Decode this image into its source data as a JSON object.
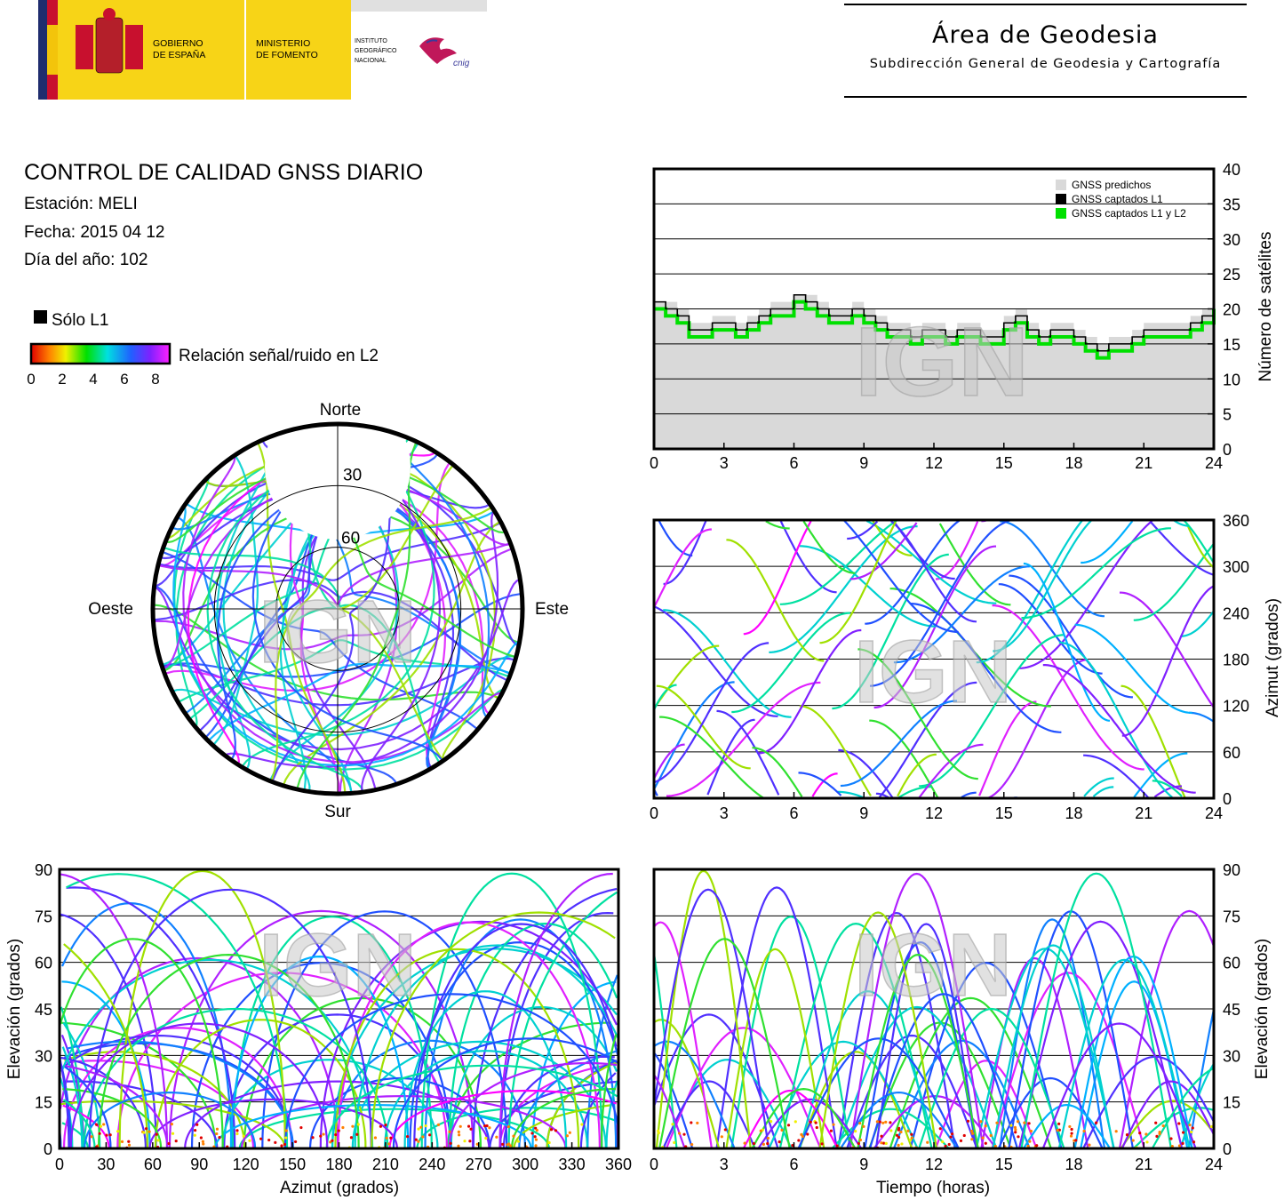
{
  "header": {
    "gov_label_1": "GOBIERNO",
    "gov_label_2": "DE ESPAÑA",
    "ministry_label_1": "MINISTERIO",
    "ministry_label_2": "DE FOMENTO",
    "ign_label_1": "INSTITUTO",
    "ign_label_2": "GEOGRÁFICO",
    "ign_label_3": "NACIONAL",
    "cnig_label": "cnig",
    "area_title": "Área de Geodesia",
    "area_subtitle": "Subdirección General de Geodesia y Cartografía"
  },
  "report": {
    "title": "CONTROL DE CALIDAD GNSS DIARIO",
    "station": "Estación: MELI",
    "date": "Fecha: 2015 04 12",
    "doy": "Día del año: 102"
  },
  "legend": {
    "only_l1": "Sólo L1",
    "snr_label": "Relación señal/ruido en L2",
    "snr_ticks": [
      "0",
      "2",
      "4",
      "6",
      "8"
    ]
  },
  "watermark": "IGN",
  "colors": {
    "predicted": "#d9d9d9",
    "l1": "#000000",
    "l1l2": "#00e000"
  },
  "chart_data": [
    {
      "id": "satellites",
      "type": "area",
      "xlim": [
        0,
        24
      ],
      "ylim": [
        0,
        40
      ],
      "xticks": [
        "0",
        "3",
        "6",
        "9",
        "12",
        "15",
        "18",
        "21",
        "24"
      ],
      "yticks": [
        "0",
        "5",
        "10",
        "15",
        "20",
        "25",
        "30",
        "35",
        "40"
      ],
      "ylabel": "Número de satélites",
      "legend_position": "top-right",
      "series": [
        {
          "name": "GNSS predichos"
        },
        {
          "name": "GNSS captados L1"
        },
        {
          "name": "GNSS captados L1 y L2"
        }
      ],
      "x": [
        0,
        0.5,
        1,
        1.5,
        2,
        2.5,
        3,
        3.5,
        4,
        4.5,
        5,
        5.5,
        6,
        6.5,
        7,
        7.5,
        8,
        8.5,
        9,
        9.5,
        10,
        10.5,
        11,
        11.5,
        12,
        12.5,
        13,
        13.5,
        14,
        14.5,
        15,
        15.5,
        16,
        16.5,
        17,
        17.5,
        18,
        18.5,
        19,
        19.5,
        20,
        20.5,
        21,
        21.5,
        22,
        22.5,
        23,
        23.5,
        24
      ],
      "predicted": [
        21,
        21,
        20,
        18,
        18,
        19,
        19,
        18,
        19,
        20,
        21,
        21,
        22,
        22,
        21,
        20,
        20,
        21,
        20,
        19,
        18,
        18,
        17,
        18,
        18,
        17,
        18,
        18,
        17,
        17,
        19,
        20,
        18,
        17,
        18,
        18,
        17,
        16,
        15,
        16,
        16,
        17,
        18,
        18,
        18,
        18,
        19,
        20,
        21
      ],
      "l1": [
        21,
        20,
        19,
        17,
        17,
        18,
        18,
        17,
        18,
        19,
        20,
        20,
        22,
        21,
        20,
        19,
        19,
        20,
        19,
        18,
        17,
        17,
        16,
        17,
        17,
        16,
        17,
        17,
        16,
        16,
        18,
        19,
        17,
        16,
        17,
        17,
        16,
        15,
        14,
        15,
        15,
        16,
        17,
        17,
        17,
        17,
        18,
        19,
        20
      ],
      "l1l2": [
        20,
        19,
        18,
        16,
        16,
        17,
        17,
        16,
        17,
        18,
        19,
        19,
        21,
        20,
        19,
        18,
        18,
        19,
        18,
        17,
        16,
        16,
        15,
        16,
        16,
        15,
        16,
        16,
        15,
        15,
        17,
        18,
        16,
        15,
        16,
        16,
        15,
        14,
        13,
        14,
        14,
        15,
        16,
        16,
        16,
        16,
        17,
        18,
        20
      ]
    },
    {
      "id": "skyplot",
      "type": "scatter",
      "directions": {
        "north": "Norte",
        "south": "Sur",
        "east": "Este",
        "west": "Oeste"
      },
      "ring_labels": [
        "30",
        "60"
      ]
    },
    {
      "id": "azimuth-time",
      "type": "scatter",
      "xlim": [
        0,
        24
      ],
      "ylim": [
        0,
        360
      ],
      "xticks": [
        "0",
        "3",
        "6",
        "9",
        "12",
        "15",
        "18",
        "21",
        "24"
      ],
      "yticks": [
        "0",
        "60",
        "120",
        "180",
        "240",
        "300",
        "360"
      ],
      "ylabel": "Azimut (grados)"
    },
    {
      "id": "elevation-azimuth",
      "type": "scatter",
      "xlim": [
        0,
        360
      ],
      "ylim": [
        0,
        90
      ],
      "xticks": [
        "0",
        "30",
        "60",
        "90",
        "120",
        "150",
        "180",
        "210",
        "240",
        "270",
        "300",
        "330",
        "360"
      ],
      "yticks": [
        "0",
        "15",
        "30",
        "45",
        "60",
        "75",
        "90"
      ],
      "xlabel": "Azimut (grados)",
      "ylabel": "Elevación (grados)"
    },
    {
      "id": "elevation-time",
      "type": "scatter",
      "xlim": [
        0,
        24
      ],
      "ylim": [
        0,
        90
      ],
      "xticks": [
        "0",
        "3",
        "6",
        "9",
        "12",
        "15",
        "18",
        "21",
        "24"
      ],
      "yticks": [
        "0",
        "15",
        "30",
        "45",
        "60",
        "75",
        "90"
      ],
      "xlabel": "Tiempo (horas)",
      "ylabel": "Elevación (grados)"
    }
  ]
}
